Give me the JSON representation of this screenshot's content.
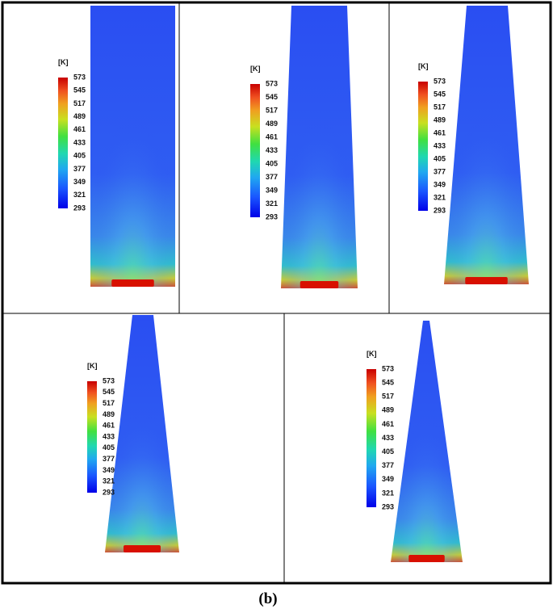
{
  "panels": [
    {
      "unit": "[K]",
      "ticks": [
        573,
        545,
        517,
        489,
        461,
        433,
        405,
        377,
        349,
        321,
        293
      ]
    },
    {
      "unit": "[K]",
      "ticks": [
        573,
        545,
        517,
        489,
        461,
        433,
        405,
        377,
        349,
        321,
        293
      ]
    },
    {
      "unit": "[K]",
      "ticks": [
        573,
        545,
        517,
        489,
        461,
        433,
        405,
        377,
        349,
        321,
        293
      ]
    },
    {
      "unit": "[K]",
      "ticks": [
        573,
        545,
        517,
        489,
        461,
        433,
        405,
        377,
        349,
        321,
        293
      ]
    },
    {
      "unit": "[K]",
      "ticks": [
        573,
        545,
        517,
        489,
        461,
        433,
        405,
        377,
        349,
        321,
        293
      ]
    }
  ],
  "caption": "(b)"
}
